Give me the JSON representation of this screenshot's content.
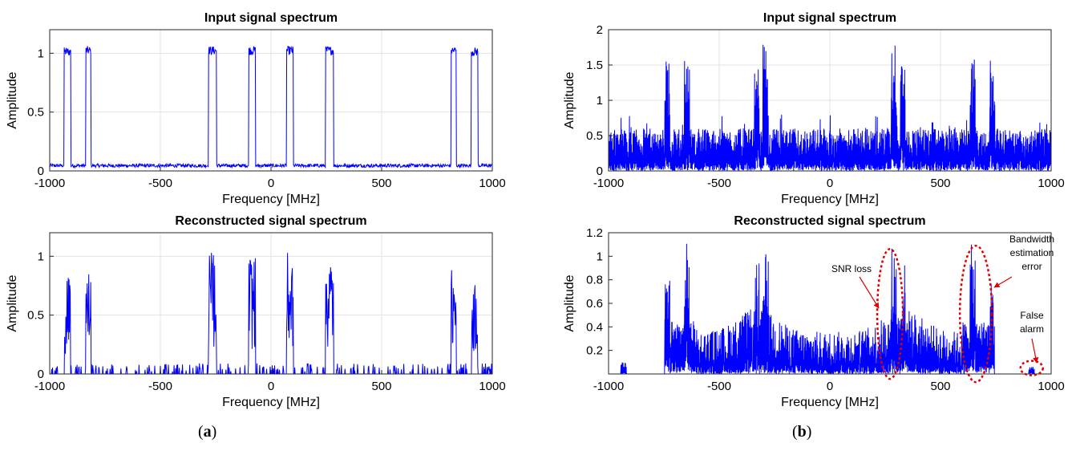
{
  "chart_data": [
    {
      "type": "line",
      "panel": "a",
      "title": "Input signal spectrum",
      "xlabel": "Frequency [MHz]",
      "ylabel": "Amplitude",
      "xlim": [
        -1000,
        1000
      ],
      "ylim": [
        0,
        1.2
      ],
      "xticks": [
        -1000,
        -500,
        0,
        500,
        1000
      ],
      "yticks": [
        0,
        0.5,
        1
      ],
      "grid": true,
      "color": "#0000ff",
      "noise_floor": 0.06,
      "peaks": [
        {
          "center": -920,
          "width": 15,
          "height": 1.05
        },
        {
          "center": -825,
          "width": 12,
          "height": 1.06
        },
        {
          "center": -265,
          "width": 18,
          "height": 1.06
        },
        {
          "center": -85,
          "width": 15,
          "height": 1.06
        },
        {
          "center": 85,
          "width": 15,
          "height": 1.06
        },
        {
          "center": 265,
          "width": 18,
          "height": 1.06
        },
        {
          "center": 825,
          "width": 12,
          "height": 1.06
        },
        {
          "center": 920,
          "width": 15,
          "height": 1.05
        }
      ]
    },
    {
      "type": "line",
      "panel": "b",
      "title": "Input signal spectrum",
      "xlabel": "Frequency [MHz]",
      "ylabel": "Amplitude",
      "xlim": [
        -1000,
        1000
      ],
      "ylim": [
        0,
        2
      ],
      "xticks": [
        -1000,
        -500,
        0,
        500,
        1000
      ],
      "yticks": [
        0,
        0.5,
        1,
        1.5,
        2
      ],
      "grid": true,
      "color": "#0000ff",
      "noise_floor": 0.6,
      "peaks": [
        {
          "center": -735,
          "width": 12,
          "height": 1.68
        },
        {
          "center": -645,
          "width": 12,
          "height": 1.6
        },
        {
          "center": -330,
          "width": 10,
          "height": 1.52
        },
        {
          "center": -290,
          "width": 12,
          "height": 1.83
        },
        {
          "center": 290,
          "width": 12,
          "height": 1.83
        },
        {
          "center": 330,
          "width": 10,
          "height": 1.6
        },
        {
          "center": 645,
          "width": 12,
          "height": 1.6
        },
        {
          "center": 735,
          "width": 12,
          "height": 1.68
        }
      ]
    },
    {
      "type": "line",
      "panel": "a",
      "title": "Reconstructed signal spectrum",
      "xlabel": "Frequency [MHz]",
      "ylabel": "Amplitude",
      "xlim": [
        -1000,
        1000
      ],
      "ylim": [
        0,
        1.2
      ],
      "xticks": [
        -1000,
        -500,
        0,
        500,
        1000
      ],
      "yticks": [
        0,
        0.5,
        1
      ],
      "grid": true,
      "color": "#0000ff",
      "noise_floor": 0.02,
      "peaks": [
        {
          "center": -920,
          "width": 14,
          "height": 0.85
        },
        {
          "center": -825,
          "width": 12,
          "height": 0.9
        },
        {
          "center": -265,
          "width": 18,
          "height": 1.04
        },
        {
          "center": -85,
          "width": 15,
          "height": 1.03
        },
        {
          "center": 85,
          "width": 15,
          "height": 1.03
        },
        {
          "center": 265,
          "width": 18,
          "height": 1.04
        },
        {
          "center": 825,
          "width": 12,
          "height": 0.9
        },
        {
          "center": 920,
          "width": 14,
          "height": 0.85
        }
      ]
    },
    {
      "type": "line",
      "panel": "b",
      "title": "Reconstructed signal spectrum",
      "xlabel": "Frequency [MHz]",
      "ylabel": "Amplitude",
      "xlim": [
        -1000,
        1000
      ],
      "ylim": [
        0,
        1.2
      ],
      "xticks": [
        -1000,
        -500,
        0,
        500,
        1000
      ],
      "yticks": [
        0.2,
        0.4,
        0.6,
        0.8,
        1,
        1.2
      ],
      "grid": false,
      "color": "#0000ff",
      "peaks": [
        {
          "center": -735,
          "width": 12,
          "height": 0.8
        },
        {
          "center": -645,
          "width": 12,
          "height": 1.12
        },
        {
          "center": -330,
          "width": 10,
          "height": 0.95
        },
        {
          "center": -290,
          "width": 12,
          "height": 1.03
        },
        {
          "center": 290,
          "width": 12,
          "height": 1.1
        },
        {
          "center": 330,
          "width": 10,
          "height": 0.95
        },
        {
          "center": 645,
          "width": 12,
          "height": 1.1
        },
        {
          "center": 735,
          "width": 10,
          "height": 0.8
        }
      ],
      "annotations": [
        {
          "lines": [
            "SNR loss"
          ]
        },
        {
          "lines": [
            "Bandwidth",
            "estimation",
            "error"
          ]
        },
        {
          "lines": [
            "False",
            "alarm"
          ]
        }
      ],
      "annotation_color": "#e00000"
    }
  ],
  "panel_labels": [
    {
      "open": "(",
      "letter": "a",
      "close": ")"
    },
    {
      "open": "(",
      "letter": "b",
      "close": ")"
    }
  ]
}
